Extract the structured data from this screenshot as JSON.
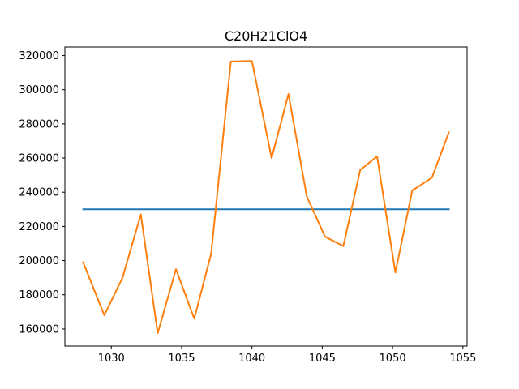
{
  "chart_data": {
    "type": "line",
    "title": "C20H21ClO4",
    "xlabel": "",
    "ylabel": "",
    "xlim": [
      1026.7,
      1055.3
    ],
    "ylim": [
      150000,
      325000
    ],
    "grid": false,
    "x_ticks": [
      1030,
      1035,
      1040,
      1045,
      1050,
      1055
    ],
    "x_tick_labels": [
      "1030",
      "1035",
      "1040",
      "1045",
      "1050",
      "1055"
    ],
    "y_ticks": [
      160000,
      180000,
      200000,
      220000,
      240000,
      260000,
      280000,
      300000,
      320000
    ],
    "y_tick_labels": [
      "160000",
      "180000",
      "200000",
      "220000",
      "240000",
      "260000",
      "280000",
      "300000",
      "320000"
    ],
    "series": [
      {
        "color": "#1f77b4",
        "x": [
          1028,
          1054
        ],
        "values": [
          230000,
          230000
        ]
      },
      {
        "color": "#ff7f0e",
        "x": [
          1028,
          1029.5,
          1030.8,
          1032.1,
          1033.3,
          1034.6,
          1035.9,
          1037.1,
          1038.5,
          1040,
          1041.4,
          1042.6,
          1043.9,
          1045.2,
          1046.5,
          1047.7,
          1048.9,
          1050.2,
          1051.4,
          1052.8,
          1054
        ],
        "values": [
          199000,
          168000,
          190000,
          227000,
          157500,
          195000,
          166000,
          204000,
          316500,
          316800,
          260000,
          297500,
          237500,
          214000,
          208500,
          253000,
          261000,
          193000,
          241000,
          248500,
          275000
        ]
      }
    ]
  }
}
